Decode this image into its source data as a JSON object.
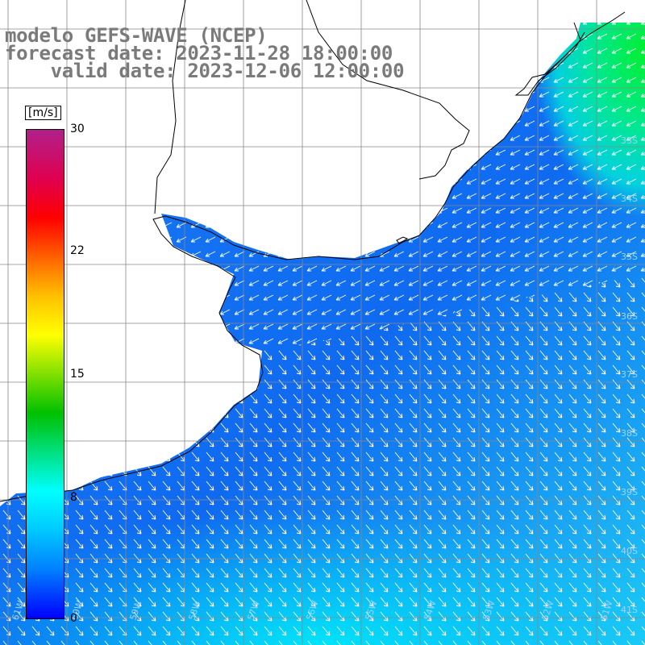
{
  "title": {
    "line1": "modelo GEFS-WAVE (NCEP)",
    "line2": "forecast date: 2023-11-28 18:00:00",
    "line3": "    valid date: 2023-12-06 12:00:00"
  },
  "legend": {
    "unit": "[m/s]",
    "ticks": [
      "30",
      "22",
      "15",
      "8",
      "0"
    ],
    "colors": [
      "#0000ff",
      "#0080ff",
      "#00c8ff",
      "#00ffff",
      "#00e080",
      "#00c000",
      "#80e000",
      "#ffff00",
      "#ffc000",
      "#ff6000",
      "#ff0000",
      "#e00050",
      "#b0208a"
    ]
  },
  "map": {
    "lat_labels": [
      "33S",
      "34S",
      "35S",
      "36S",
      "37S",
      "38S",
      "39S",
      "40S",
      "41S"
    ],
    "lon_labels": [
      "61W",
      "60W",
      "59W",
      "58W",
      "57W",
      "56W",
      "55W",
      "54W",
      "53W",
      "52W",
      "51W"
    ]
  }
}
